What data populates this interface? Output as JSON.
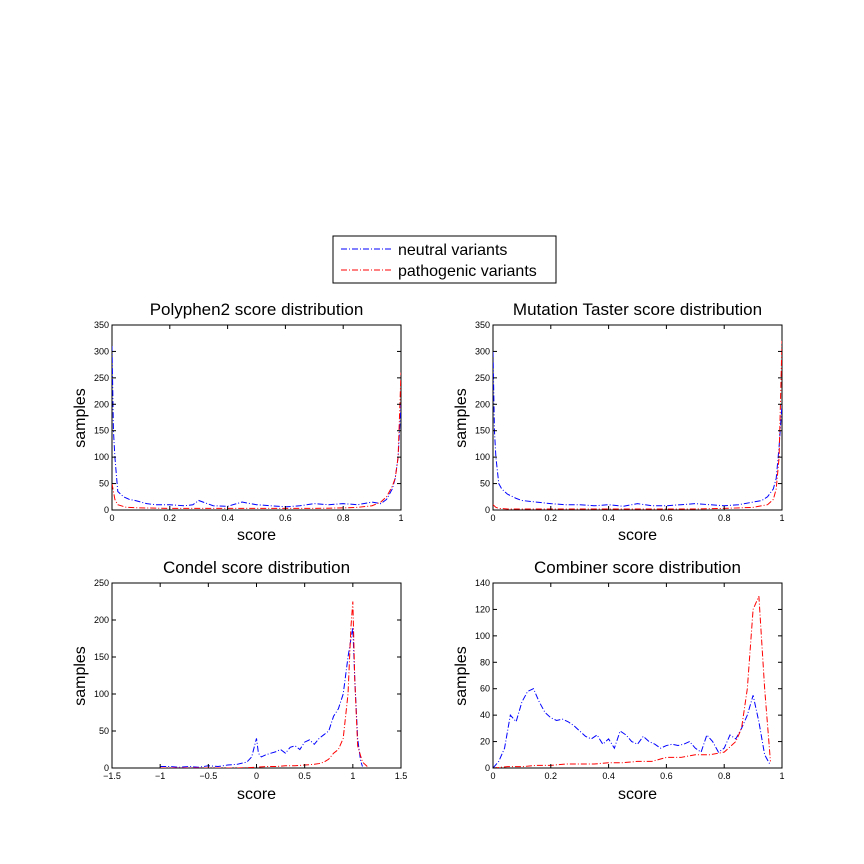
{
  "legend": {
    "entries": [
      {
        "label": "neutral variants",
        "color": "#0000ff"
      },
      {
        "label": "pathogenic variants",
        "color": "#ff0000"
      }
    ]
  },
  "chart_data": [
    {
      "type": "line",
      "title": "Polyphen2 score distribution",
      "xlabel": "score",
      "ylabel": "samples",
      "xlim": [
        0,
        1
      ],
      "ylim": [
        0,
        350
      ],
      "xticks": [
        0,
        0.2,
        0.4,
        0.6,
        0.8,
        1
      ],
      "xtick_labels": [
        "0",
        "0.2",
        "0.4",
        "0.6",
        "0.8",
        "1"
      ],
      "yticks": [
        0,
        50,
        100,
        150,
        200,
        250,
        300,
        350
      ],
      "ytick_labels": [
        "0",
        "50",
        "100",
        "150",
        "200",
        "250",
        "300",
        "350"
      ],
      "grid": false,
      "series": [
        {
          "name": "neutral variants",
          "color": "#0000ff",
          "x": [
            0,
            0.005,
            0.01,
            0.02,
            0.04,
            0.06,
            0.08,
            0.1,
            0.12,
            0.15,
            0.2,
            0.25,
            0.28,
            0.3,
            0.35,
            0.4,
            0.45,
            0.5,
            0.55,
            0.6,
            0.65,
            0.7,
            0.75,
            0.8,
            0.85,
            0.9,
            0.93,
            0.95,
            0.97,
            0.98,
            0.99,
            1
          ],
          "y": [
            310,
            150,
            100,
            35,
            25,
            20,
            18,
            15,
            12,
            10,
            10,
            8,
            10,
            18,
            8,
            7,
            15,
            10,
            8,
            6,
            8,
            12,
            10,
            12,
            10,
            15,
            12,
            20,
            40,
            60,
            100,
            200
          ]
        },
        {
          "name": "pathogenic variants",
          "color": "#ff0000",
          "x": [
            0,
            0.01,
            0.02,
            0.05,
            0.1,
            0.2,
            0.3,
            0.4,
            0.5,
            0.6,
            0.7,
            0.8,
            0.85,
            0.9,
            0.93,
            0.95,
            0.97,
            0.98,
            0.99,
            1
          ],
          "y": [
            50,
            20,
            10,
            5,
            4,
            3,
            3,
            3,
            3,
            3,
            3,
            4,
            5,
            8,
            15,
            25,
            45,
            60,
            100,
            260
          ]
        }
      ]
    },
    {
      "type": "line",
      "title": "Mutation Taster score distribution",
      "xlabel": "score",
      "ylabel": "samples",
      "xlim": [
        0,
        1
      ],
      "ylim": [
        0,
        350
      ],
      "xticks": [
        0,
        0.2,
        0.4,
        0.6,
        0.8,
        1
      ],
      "xtick_labels": [
        "0",
        "0.2",
        "0.4",
        "0.6",
        "0.8",
        "1"
      ],
      "yticks": [
        0,
        50,
        100,
        150,
        200,
        250,
        300,
        350
      ],
      "ytick_labels": [
        "0",
        "50",
        "100",
        "150",
        "200",
        "250",
        "300",
        "350"
      ],
      "grid": false,
      "series": [
        {
          "name": "neutral variants",
          "color": "#0000ff",
          "x": [
            0,
            0.005,
            0.01,
            0.02,
            0.03,
            0.05,
            0.08,
            0.1,
            0.15,
            0.2,
            0.25,
            0.3,
            0.35,
            0.4,
            0.45,
            0.5,
            0.55,
            0.6,
            0.65,
            0.7,
            0.75,
            0.8,
            0.85,
            0.9,
            0.93,
            0.95,
            0.97,
            0.98,
            0.99,
            1
          ],
          "y": [
            300,
            150,
            100,
            50,
            40,
            30,
            22,
            18,
            15,
            12,
            10,
            10,
            8,
            10,
            7,
            12,
            8,
            8,
            10,
            12,
            10,
            8,
            10,
            15,
            18,
            25,
            40,
            60,
            120,
            200
          ]
        },
        {
          "name": "pathogenic variants",
          "color": "#ff0000",
          "x": [
            0,
            0.01,
            0.02,
            0.05,
            0.1,
            0.2,
            0.3,
            0.4,
            0.5,
            0.6,
            0.7,
            0.8,
            0.9,
            0.95,
            0.97,
            0.98,
            0.99,
            1
          ],
          "y": [
            10,
            5,
            3,
            2,
            2,
            2,
            2,
            2,
            2,
            2,
            2,
            3,
            5,
            10,
            20,
            40,
            100,
            320
          ]
        }
      ]
    },
    {
      "type": "line",
      "title": "Condel score distribution",
      "xlabel": "score",
      "ylabel": "samples",
      "xlim": [
        -1.5,
        1.5
      ],
      "ylim": [
        0,
        250
      ],
      "xticks": [
        -1.5,
        -1,
        -0.5,
        0,
        0.5,
        1,
        1.5
      ],
      "xtick_labels": [
        "−1.5",
        "−1",
        "−0.5",
        "0",
        "0.5",
        "1",
        "1.5"
      ],
      "yticks": [
        0,
        50,
        100,
        150,
        200,
        250
      ],
      "ytick_labels": [
        "0",
        "50",
        "100",
        "150",
        "200",
        "250"
      ],
      "grid": false,
      "series": [
        {
          "name": "neutral variants",
          "color": "#0000ff",
          "x": [
            -1,
            -0.9,
            -0.8,
            -0.7,
            -0.6,
            -0.5,
            -0.4,
            -0.3,
            -0.2,
            -0.1,
            -0.05,
            0,
            0.02,
            0.05,
            0.1,
            0.15,
            0.2,
            0.25,
            0.3,
            0.35,
            0.4,
            0.45,
            0.5,
            0.55,
            0.6,
            0.65,
            0.7,
            0.75,
            0.8,
            0.85,
            0.9,
            0.95,
            1,
            1.02,
            1.05,
            1.08,
            1.1
          ],
          "y": [
            2,
            2,
            1,
            2,
            1,
            3,
            2,
            4,
            5,
            8,
            15,
            40,
            20,
            15,
            18,
            20,
            22,
            25,
            20,
            28,
            30,
            25,
            35,
            38,
            32,
            40,
            45,
            50,
            70,
            80,
            100,
            150,
            190,
            120,
            40,
            10,
            2
          ]
        },
        {
          "name": "pathogenic variants",
          "color": "#ff0000",
          "x": [
            -1,
            -0.5,
            -0.2,
            0,
            0.1,
            0.2,
            0.3,
            0.4,
            0.5,
            0.6,
            0.65,
            0.7,
            0.75,
            0.8,
            0.85,
            0.9,
            0.95,
            0.98,
            1,
            1.02,
            1.05,
            1.1,
            1.15
          ],
          "y": [
            0,
            0,
            0,
            1,
            2,
            2,
            3,
            3,
            4,
            5,
            6,
            8,
            12,
            20,
            25,
            40,
            100,
            190,
            225,
            120,
            30,
            8,
            2
          ]
        }
      ]
    },
    {
      "type": "line",
      "title": "Combiner score distribution",
      "xlabel": "score",
      "ylabel": "samples",
      "xlim": [
        0,
        1
      ],
      "ylim": [
        0,
        140
      ],
      "xticks": [
        0,
        0.2,
        0.4,
        0.6,
        0.8,
        1
      ],
      "xtick_labels": [
        "0",
        "0.2",
        "0.4",
        "0.6",
        "0.8",
        "1"
      ],
      "yticks": [
        0,
        20,
        40,
        60,
        80,
        100,
        120,
        140
      ],
      "ytick_labels": [
        "0",
        "20",
        "40",
        "60",
        "80",
        "100",
        "120",
        "140"
      ],
      "grid": false,
      "series": [
        {
          "name": "neutral variants",
          "color": "#0000ff",
          "x": [
            0,
            0.02,
            0.04,
            0.06,
            0.08,
            0.1,
            0.12,
            0.14,
            0.16,
            0.18,
            0.2,
            0.22,
            0.24,
            0.26,
            0.28,
            0.3,
            0.32,
            0.34,
            0.36,
            0.38,
            0.4,
            0.42,
            0.44,
            0.46,
            0.48,
            0.5,
            0.52,
            0.54,
            0.56,
            0.58,
            0.6,
            0.62,
            0.64,
            0.66,
            0.68,
            0.7,
            0.72,
            0.74,
            0.76,
            0.78,
            0.8,
            0.82,
            0.84,
            0.86,
            0.88,
            0.9,
            0.92,
            0.94,
            0.96
          ],
          "y": [
            0,
            5,
            15,
            40,
            35,
            50,
            58,
            60,
            50,
            42,
            38,
            36,
            37,
            35,
            32,
            28,
            24,
            22,
            25,
            18,
            22,
            15,
            28,
            25,
            20,
            18,
            24,
            20,
            18,
            15,
            17,
            18,
            17,
            18,
            20,
            15,
            12,
            25,
            20,
            12,
            15,
            25,
            22,
            30,
            40,
            55,
            35,
            10,
            2
          ]
        },
        {
          "name": "pathogenic variants",
          "color": "#ff0000",
          "x": [
            0,
            0.05,
            0.1,
            0.15,
            0.2,
            0.25,
            0.3,
            0.35,
            0.4,
            0.45,
            0.5,
            0.55,
            0.6,
            0.65,
            0.7,
            0.75,
            0.8,
            0.84,
            0.86,
            0.88,
            0.9,
            0.92,
            0.94,
            0.96
          ],
          "y": [
            0,
            1,
            1,
            2,
            2,
            3,
            3,
            3,
            4,
            4,
            5,
            5,
            8,
            8,
            10,
            10,
            12,
            20,
            30,
            60,
            120,
            130,
            60,
            5
          ]
        }
      ]
    }
  ]
}
